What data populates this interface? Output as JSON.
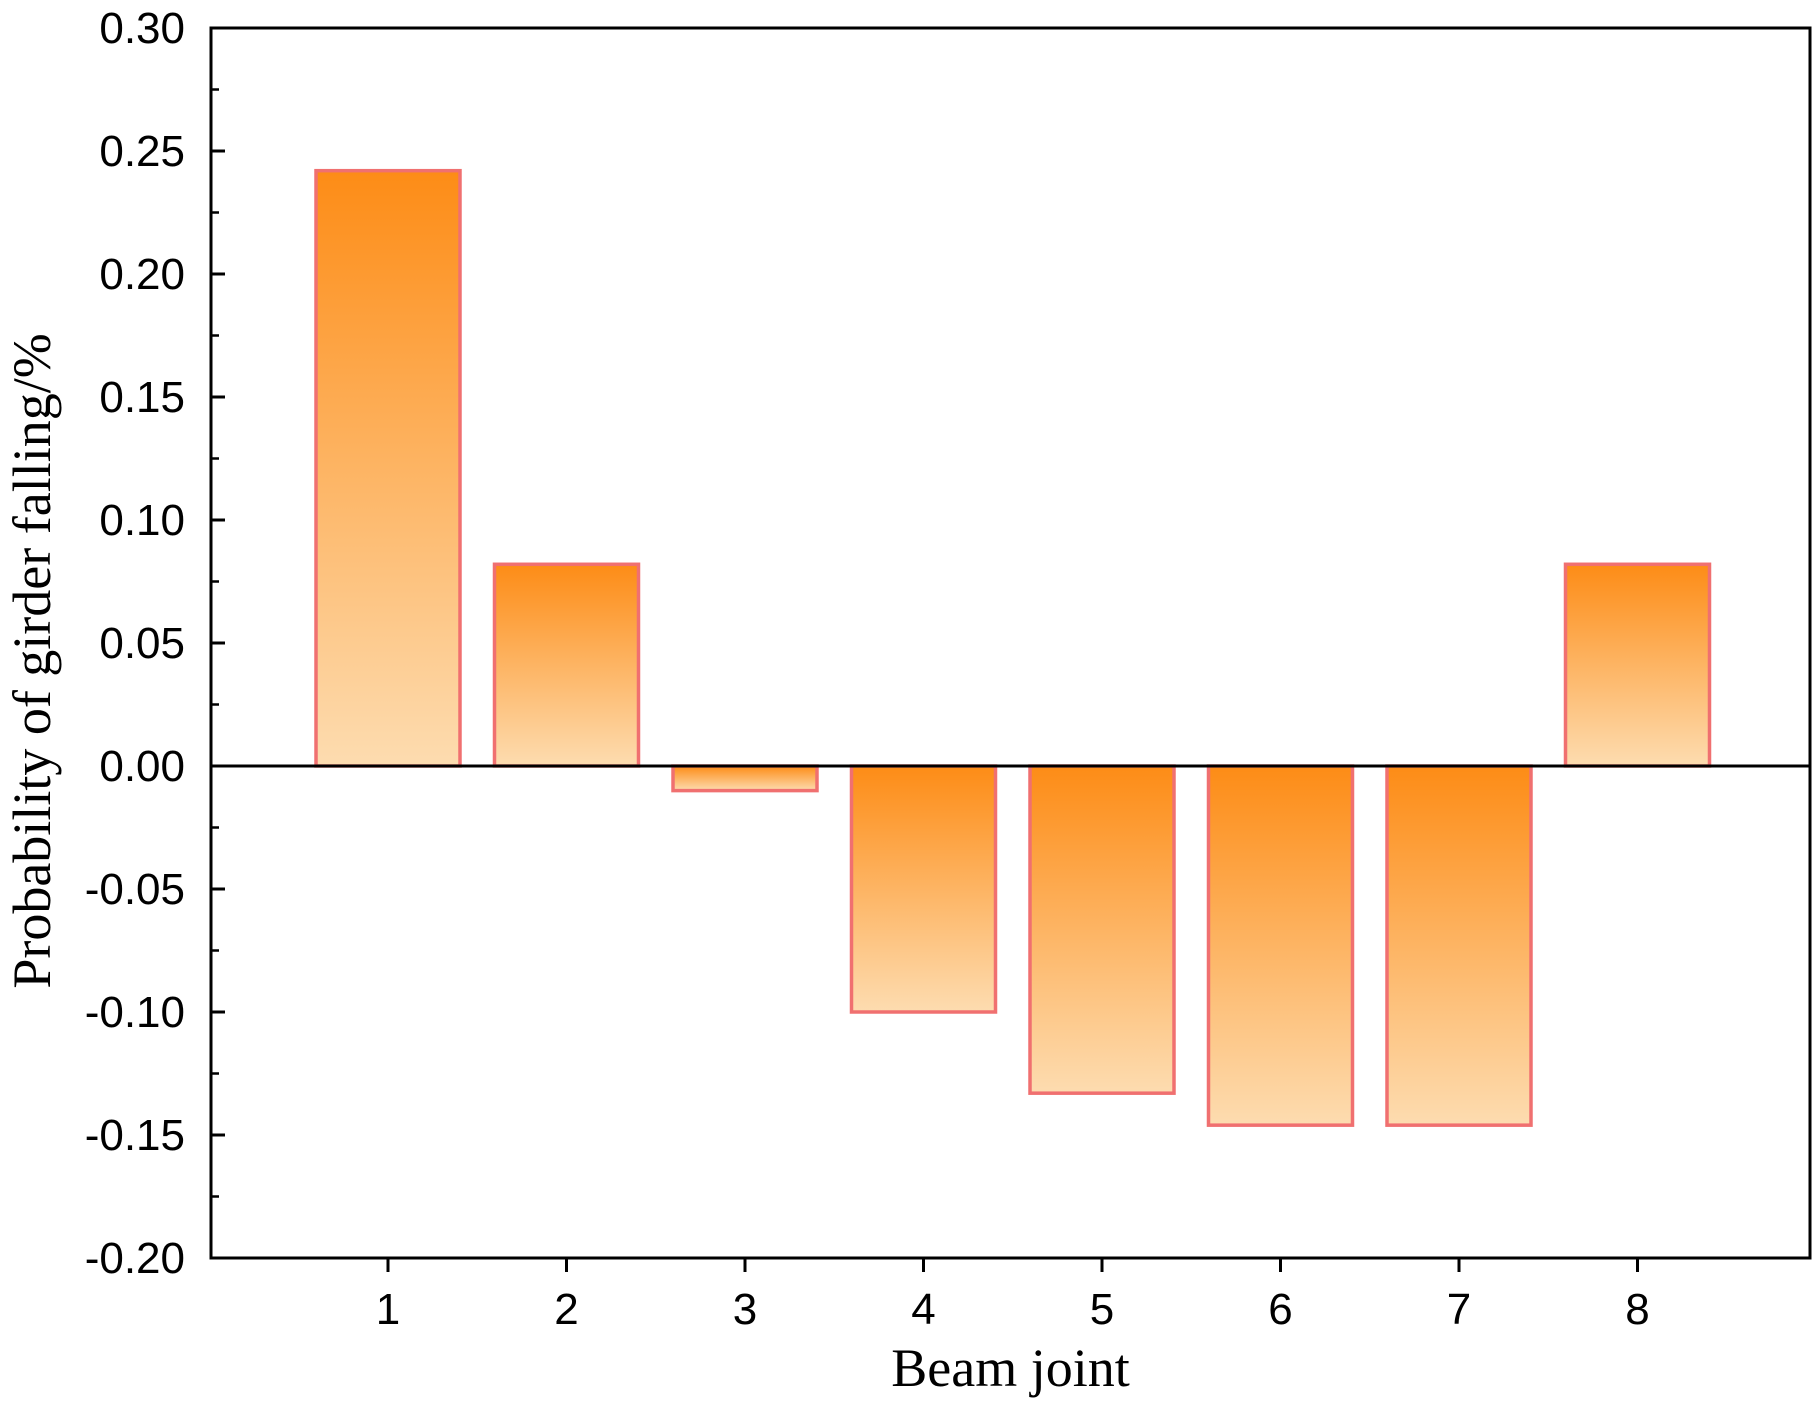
{
  "chart_data": {
    "type": "bar",
    "title": "",
    "xlabel": "Beam joint",
    "ylabel": "Probability of girder falling/%",
    "categories": [
      "1",
      "2",
      "3",
      "4",
      "5",
      "6",
      "7",
      "8"
    ],
    "values": [
      0.242,
      0.082,
      -0.01,
      -0.1,
      -0.133,
      -0.146,
      -0.146,
      0.082
    ],
    "ylim": [
      -0.2,
      0.3
    ],
    "yticks": [
      "-0.20",
      "-0.15",
      "-0.10",
      "-0.05",
      "0.00",
      "0.05",
      "0.10",
      "0.15",
      "0.20",
      "0.25",
      "0.30"
    ],
    "grid": false,
    "legend": "none",
    "colors": {
      "bar_gradient_strong": "#fd8c16",
      "bar_gradient_light": "#fddcb0",
      "bar_edge": "#f07070",
      "zero_line": "#000000"
    }
  }
}
